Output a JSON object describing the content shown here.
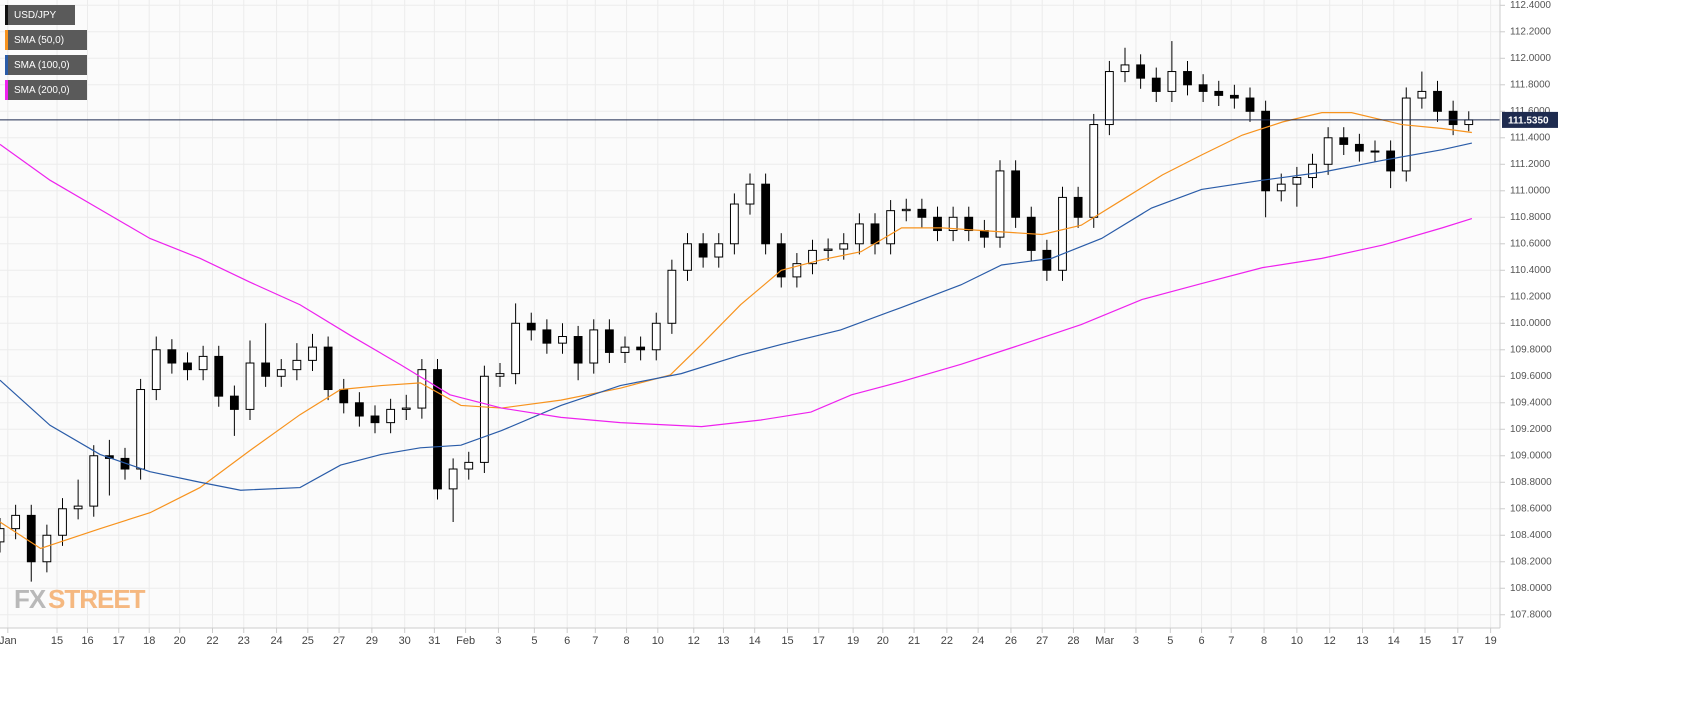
{
  "chart_data": {
    "type": "candlestick",
    "ylim": [
      107.7,
      112.44
    ],
    "xlim": [
      0,
      96
    ],
    "grid": true,
    "legend": "top-left",
    "watermark": [
      "FX",
      "STREET"
    ],
    "last_price": {
      "value": 111.535,
      "label": "111.5350"
    },
    "yticks": [
      {
        "value": 112.4,
        "label": "112.4000"
      },
      {
        "value": 112.2,
        "label": "112.2000"
      },
      {
        "value": 112.0,
        "label": "112.0000"
      },
      {
        "value": 111.8,
        "label": "111.8000"
      },
      {
        "value": 111.6,
        "label": "111.6000"
      },
      {
        "value": 111.4,
        "label": "111.4000"
      },
      {
        "value": 111.2,
        "label": "111.2000"
      },
      {
        "value": 111.0,
        "label": "111.0000"
      },
      {
        "value": 110.8,
        "label": "110.8000"
      },
      {
        "value": 110.6,
        "label": "110.6000"
      },
      {
        "value": 110.4,
        "label": "110.4000"
      },
      {
        "value": 110.2,
        "label": "110.2000"
      },
      {
        "value": 110.0,
        "label": "110.0000"
      },
      {
        "value": 109.8,
        "label": "109.8000"
      },
      {
        "value": 109.6,
        "label": "109.6000"
      },
      {
        "value": 109.4,
        "label": "109.4000"
      },
      {
        "value": 109.2,
        "label": "109.2000"
      },
      {
        "value": 109.0,
        "label": "109.0000"
      },
      {
        "value": 108.8,
        "label": "108.8000"
      },
      {
        "value": 108.6,
        "label": "108.6000"
      },
      {
        "value": 108.4,
        "label": "108.4000"
      },
      {
        "value": 108.2,
        "label": "108.2000"
      },
      {
        "value": 108.0,
        "label": "108.0000"
      },
      {
        "value": 107.8,
        "label": "107.8000"
      }
    ],
    "xticks": [
      {
        "value": 0.5,
        "label": "Jan"
      },
      {
        "value": 3.65,
        "label": "15"
      },
      {
        "value": 5.6,
        "label": "16"
      },
      {
        "value": 7.6,
        "label": "17"
      },
      {
        "value": 9.55,
        "label": "18"
      },
      {
        "value": 11.5,
        "label": "20"
      },
      {
        "value": 13.6,
        "label": "22"
      },
      {
        "value": 15.6,
        "label": "23"
      },
      {
        "value": 17.7,
        "label": "24"
      },
      {
        "value": 19.7,
        "label": "25"
      },
      {
        "value": 21.7,
        "label": "27"
      },
      {
        "value": 23.8,
        "label": "29"
      },
      {
        "value": 25.9,
        "label": "30"
      },
      {
        "value": 27.8,
        "label": "31"
      },
      {
        "value": 29.8,
        "label": "Feb"
      },
      {
        "value": 31.9,
        "label": "3"
      },
      {
        "value": 34.2,
        "label": "5"
      },
      {
        "value": 36.3,
        "label": "6"
      },
      {
        "value": 38.1,
        "label": "7"
      },
      {
        "value": 40.1,
        "label": "8"
      },
      {
        "value": 42.1,
        "label": "10"
      },
      {
        "value": 44.4,
        "label": "12"
      },
      {
        "value": 46.3,
        "label": "13"
      },
      {
        "value": 48.3,
        "label": "14"
      },
      {
        "value": 50.4,
        "label": "15"
      },
      {
        "value": 52.4,
        "label": "17"
      },
      {
        "value": 54.6,
        "label": "19"
      },
      {
        "value": 56.5,
        "label": "20"
      },
      {
        "value": 58.5,
        "label": "21"
      },
      {
        "value": 60.6,
        "label": "22"
      },
      {
        "value": 62.6,
        "label": "24"
      },
      {
        "value": 64.7,
        "label": "26"
      },
      {
        "value": 66.7,
        "label": "27"
      },
      {
        "value": 68.7,
        "label": "28"
      },
      {
        "value": 70.7,
        "label": "Mar"
      },
      {
        "value": 72.7,
        "label": "3"
      },
      {
        "value": 74.9,
        "label": "5"
      },
      {
        "value": 76.9,
        "label": "6"
      },
      {
        "value": 78.8,
        "label": "7"
      },
      {
        "value": 80.9,
        "label": "8"
      },
      {
        "value": 83.0,
        "label": "10"
      },
      {
        "value": 85.1,
        "label": "12"
      },
      {
        "value": 87.2,
        "label": "13"
      },
      {
        "value": 89.2,
        "label": "14"
      },
      {
        "value": 91.2,
        "label": "15"
      },
      {
        "value": 93.3,
        "label": "17"
      },
      {
        "value": 95.4,
        "label": "19"
      }
    ],
    "series": [
      {
        "name": "USD/JPY",
        "color": "#000000",
        "open": [
          108.35,
          108.45,
          108.55,
          108.2,
          108.4,
          108.6,
          108.62,
          109.0,
          108.98,
          108.9,
          109.5,
          109.8,
          109.7,
          109.65,
          109.75,
          109.45,
          109.35,
          109.7,
          109.6,
          109.65,
          109.72,
          109.82,
          109.5,
          109.4,
          109.3,
          109.25,
          109.35,
          109.36,
          109.65,
          108.75,
          108.9,
          108.95,
          109.6,
          109.62,
          110.0,
          109.95,
          109.85,
          109.9,
          109.7,
          109.95,
          109.78,
          109.82,
          109.8,
          110.0,
          110.4,
          110.6,
          110.5,
          110.6,
          110.9,
          111.05,
          110.6,
          110.35,
          110.45,
          110.55,
          110.56,
          110.6,
          110.75,
          110.6,
          110.85,
          110.86,
          110.8,
          110.7,
          110.8,
          110.7,
          110.65,
          111.15,
          110.8,
          110.55,
          110.4,
          110.95,
          110.8,
          111.5,
          111.9,
          111.95,
          111.85,
          111.75,
          111.9,
          111.8,
          111.75,
          111.72,
          111.7,
          111.6,
          111.0,
          111.05,
          111.1,
          111.2,
          111.4,
          111.35,
          111.3,
          111.3,
          111.15,
          111.7,
          111.75,
          111.6,
          111.5
        ],
        "high": [
          108.53,
          108.63,
          108.63,
          108.48,
          108.68,
          108.82,
          109.08,
          109.12,
          109.06,
          109.58,
          109.9,
          109.88,
          109.78,
          109.83,
          109.83,
          109.53,
          109.87,
          110.0,
          109.73,
          109.85,
          109.92,
          109.9,
          109.58,
          109.48,
          109.38,
          109.43,
          109.46,
          109.73,
          109.73,
          108.98,
          109.03,
          109.68,
          109.7,
          110.15,
          110.08,
          110.03,
          110.0,
          109.98,
          110.03,
          110.03,
          109.9,
          109.9,
          110.08,
          110.48,
          110.68,
          110.68,
          110.68,
          110.98,
          111.13,
          111.13,
          110.68,
          110.53,
          110.63,
          110.64,
          110.68,
          110.83,
          110.83,
          110.93,
          110.94,
          110.94,
          110.88,
          110.88,
          110.88,
          110.78,
          111.23,
          111.23,
          110.88,
          110.63,
          111.03,
          111.03,
          111.58,
          111.98,
          112.08,
          112.03,
          111.93,
          112.13,
          111.98,
          111.88,
          111.83,
          111.8,
          111.78,
          111.68,
          111.13,
          111.18,
          111.28,
          111.48,
          111.48,
          111.43,
          111.38,
          111.38,
          111.78,
          111.9,
          111.83,
          111.68,
          111.6
        ],
        "low": [
          108.27,
          108.37,
          108.05,
          108.12,
          108.32,
          108.52,
          108.54,
          108.7,
          108.82,
          108.82,
          109.42,
          109.62,
          109.57,
          109.57,
          109.37,
          109.15,
          109.27,
          109.52,
          109.52,
          109.57,
          109.64,
          109.42,
          109.32,
          109.22,
          109.17,
          109.17,
          109.27,
          109.28,
          108.67,
          108.5,
          108.82,
          108.87,
          109.52,
          109.54,
          109.87,
          109.77,
          109.77,
          109.57,
          109.62,
          109.7,
          109.7,
          109.72,
          109.72,
          109.92,
          110.32,
          110.42,
          110.42,
          110.52,
          110.82,
          110.52,
          110.27,
          110.27,
          110.37,
          110.47,
          110.48,
          110.52,
          110.52,
          110.52,
          110.77,
          110.72,
          110.62,
          110.62,
          110.62,
          110.57,
          110.57,
          110.72,
          110.47,
          110.32,
          110.32,
          110.72,
          110.72,
          111.42,
          111.82,
          111.77,
          111.67,
          111.67,
          111.72,
          111.67,
          111.64,
          111.62,
          111.52,
          110.8,
          110.92,
          110.88,
          111.02,
          111.12,
          111.27,
          111.22,
          111.22,
          111.02,
          111.07,
          111.62,
          111.52,
          111.42,
          111.45
        ],
        "close": [
          108.45,
          108.55,
          108.2,
          108.4,
          108.6,
          108.62,
          109.0,
          108.98,
          108.9,
          109.5,
          109.8,
          109.7,
          109.65,
          109.75,
          109.45,
          109.35,
          109.7,
          109.6,
          109.65,
          109.72,
          109.82,
          109.5,
          109.4,
          109.3,
          109.25,
          109.35,
          109.36,
          109.65,
          108.75,
          108.9,
          108.95,
          109.6,
          109.62,
          110.0,
          109.95,
          109.85,
          109.9,
          109.7,
          109.95,
          109.78,
          109.82,
          109.8,
          110.0,
          110.4,
          110.6,
          110.5,
          110.6,
          110.9,
          111.05,
          110.6,
          110.35,
          110.45,
          110.55,
          110.56,
          110.6,
          110.75,
          110.6,
          110.85,
          110.86,
          110.8,
          110.7,
          110.8,
          110.7,
          110.65,
          111.15,
          110.8,
          110.55,
          110.4,
          110.95,
          110.8,
          111.5,
          111.9,
          111.95,
          111.85,
          111.75,
          111.9,
          111.8,
          111.75,
          111.72,
          111.7,
          111.6,
          111.0,
          111.05,
          111.1,
          111.2,
          111.4,
          111.35,
          111.3,
          111.3,
          111.15,
          111.7,
          111.75,
          111.6,
          111.5,
          111.535
        ]
      },
      {
        "name": "SMA (50,0)",
        "color": "#f7931e",
        "type": "line",
        "x": [
          0,
          2.6,
          6.4,
          9.6,
          12.8,
          16,
          19.2,
          21.8,
          24.4,
          26.9,
          29.5,
          32.1,
          35.9,
          39.7,
          42.9,
          44.9,
          47.4,
          50,
          52.6,
          55.1,
          57.7,
          60.3,
          62.8,
          66.7,
          69.2,
          71.8,
          74.4,
          76.9,
          79.5,
          82.1,
          84.6,
          86.5,
          89.7,
          92.3,
          94.2
        ],
        "values": [
          108.5,
          108.3,
          108.45,
          108.57,
          108.76,
          109.04,
          109.31,
          109.5,
          109.53,
          109.55,
          109.38,
          109.36,
          109.42,
          109.51,
          109.61,
          109.84,
          110.14,
          110.4,
          110.48,
          110.54,
          110.72,
          110.72,
          110.7,
          110.67,
          110.74,
          110.93,
          111.12,
          111.27,
          111.42,
          111.52,
          111.59,
          111.59,
          111.5,
          111.47,
          111.44
        ]
      },
      {
        "name": "SMA (100,0)",
        "color": "#2a5ca8",
        "type": "line",
        "x": [
          0,
          3.2,
          6.4,
          9.6,
          12.8,
          15.4,
          19.2,
          21.8,
          24.4,
          26.9,
          29.5,
          32.1,
          35.9,
          39.7,
          43.6,
          47.4,
          50,
          53.8,
          57.7,
          61.5,
          64.1,
          67.3,
          70.5,
          73.7,
          76.9,
          80.8,
          84.6,
          88.5,
          92.3,
          94.2
        ],
        "values": [
          109.57,
          109.23,
          109.01,
          108.88,
          108.8,
          108.74,
          108.76,
          108.93,
          109.01,
          109.06,
          109.08,
          109.19,
          109.38,
          109.53,
          109.62,
          109.76,
          109.84,
          109.95,
          110.12,
          110.29,
          110.44,
          110.49,
          110.64,
          110.87,
          111.01,
          111.08,
          111.14,
          111.23,
          111.31,
          111.36
        ]
      },
      {
        "name": "SMA (200,0)",
        "color": "#ee22ee",
        "type": "line",
        "x": [
          0,
          3.2,
          6.4,
          9.6,
          12.8,
          16,
          19.2,
          22.4,
          25.6,
          28.8,
          32.1,
          35.9,
          39.7,
          44.9,
          48.7,
          51.9,
          54.5,
          57.7,
          61.5,
          65.4,
          69.2,
          73.1,
          76.9,
          80.8,
          84.6,
          88.5,
          92.3,
          94.2
        ],
        "values": [
          111.35,
          111.08,
          110.86,
          110.64,
          110.49,
          110.31,
          110.14,
          109.91,
          109.69,
          109.46,
          109.36,
          109.29,
          109.25,
          109.22,
          109.27,
          109.33,
          109.46,
          109.56,
          109.69,
          109.84,
          109.99,
          110.18,
          110.3,
          110.42,
          110.49,
          110.59,
          110.72,
          110.79
        ]
      }
    ]
  }
}
